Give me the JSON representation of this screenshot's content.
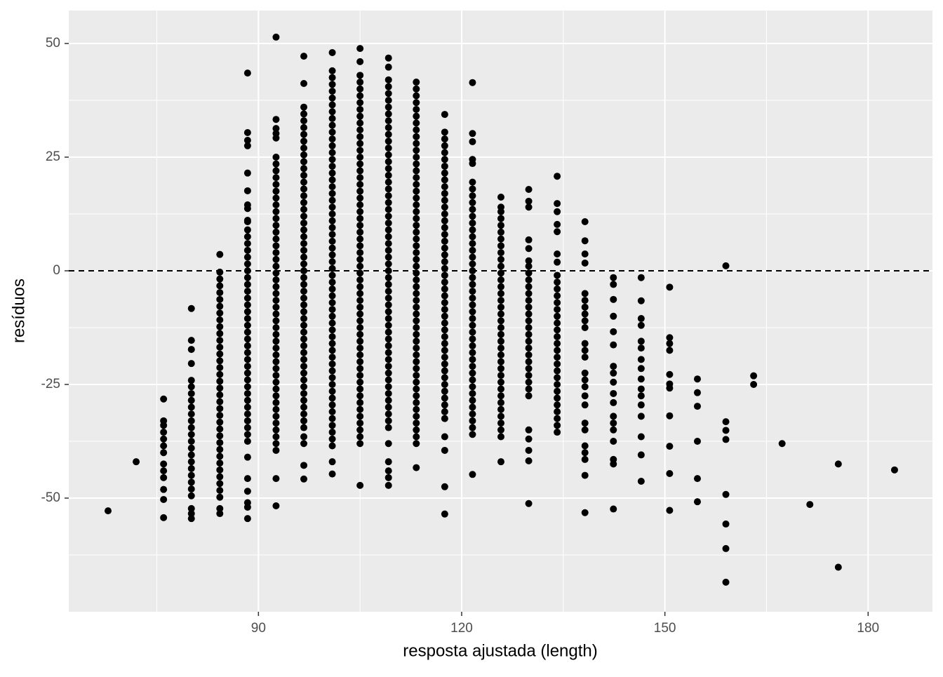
{
  "chart_data": {
    "type": "scatter",
    "x_label": "resposta ajustada (length)",
    "y_label": "resíduos",
    "xlim": [
      62.0,
      189.5
    ],
    "ylim": [
      -75.0,
      57.25
    ],
    "xticks": [
      90,
      120,
      150,
      180
    ],
    "yticks": [
      -50,
      -25,
      0,
      25,
      50
    ],
    "x_minor_grid": [
      75,
      105,
      135,
      165
    ],
    "y_minor_grid": [
      -62.5,
      -37.5,
      -12.5,
      12.5,
      37.5
    ],
    "hline": 0,
    "color": "#000000",
    "groups": [
      {
        "x": 67.8,
        "values": [
          -52.8
        ]
      },
      {
        "x": 71.95,
        "values": [
          -42.0
        ]
      },
      {
        "x": 76.0,
        "values": [
          -28.2,
          -33,
          -34,
          -35.5,
          -37,
          -38.5,
          -40,
          -42.5,
          -44,
          -45.5,
          -48.1,
          -50.3,
          -54.3
        ]
      },
      {
        "x": 80.1,
        "values": [
          -8.3,
          -15.3,
          -17.3,
          -20.4,
          -24.1,
          -25.5,
          -27,
          -28.5,
          -30,
          -31.5,
          -33,
          -34.5,
          -36,
          -37.5,
          -39,
          -40.5,
          -42,
          -43.5,
          -45,
          -46.5,
          -48,
          -49.5,
          -52.3,
          -53.4,
          -54.5
        ]
      },
      {
        "x": 84.3,
        "values": [
          3.6,
          -0.3,
          -1.8,
          -3.3,
          -4.8,
          -6.3,
          -7.8,
          -9.3,
          -10.8,
          -12.3,
          -13.8,
          -15.3,
          -16.8,
          -18.3,
          -19.8,
          -21.3,
          -22.8,
          -24.3,
          -25.8,
          -27.3,
          -28.8,
          -30.3,
          -31.8,
          -33.3,
          -34.8,
          -36.3,
          -37.8,
          -39.3,
          -40.8,
          -42.3,
          -43.8,
          -45.3,
          -46.8,
          -48.3,
          -49.8,
          -52.3,
          -53.4
        ]
      },
      {
        "x": 88.4,
        "values": [
          43.5,
          30.4,
          28.7,
          27.5,
          21.5,
          17.6,
          14.5,
          13.7,
          11.1,
          10.8,
          9,
          7.5,
          6,
          4.5,
          3,
          1.5,
          0,
          -1.5,
          -3,
          -4.5,
          -6,
          -7.5,
          -9,
          -10.5,
          -12,
          -13.5,
          -15,
          -16.5,
          -18,
          -19.5,
          -21,
          -22.5,
          -24,
          -25.5,
          -27,
          -28.5,
          -30,
          -31.5,
          -33,
          -34.5,
          -36,
          -37.5,
          -41,
          -45.7,
          -48.5,
          -51,
          -52,
          -54.5
        ]
      },
      {
        "x": 92.6,
        "values": [
          51.4,
          33.3,
          31.3,
          30.2,
          29.2,
          25,
          23.5,
          22,
          20.5,
          19,
          17.5,
          16,
          14.5,
          13,
          11.5,
          10,
          8.5,
          7,
          5.5,
          4,
          2.5,
          1,
          -0.5,
          -2,
          -3.5,
          -5,
          -6.5,
          -8,
          -9.5,
          -11,
          -12.5,
          -14,
          -15.5,
          -17,
          -18.5,
          -20,
          -21.5,
          -23,
          -24.5,
          -26,
          -27.5,
          -29,
          -30.5,
          -32,
          -33.5,
          -35,
          -36.5,
          -38,
          -39.5,
          -45.7,
          -51.7
        ]
      },
      {
        "x": 96.7,
        "values": [
          47.2,
          41.2,
          36,
          34.5,
          33,
          31.5,
          30,
          28.5,
          27,
          25.5,
          24,
          22.5,
          21,
          19.5,
          18,
          16.5,
          15,
          13.5,
          12,
          10.5,
          9,
          7.5,
          6,
          4.5,
          3,
          1.5,
          0,
          -1.5,
          -3,
          -4.5,
          -6,
          -7.5,
          -9,
          -10.5,
          -12,
          -13.5,
          -15,
          -16.5,
          -18,
          -19.5,
          -21,
          -22.5,
          -24,
          -25.5,
          -27,
          -28.5,
          -30,
          -31.5,
          -33,
          -34.5,
          -36.5,
          -38,
          -42.8,
          -45.8
        ]
      },
      {
        "x": 100.9,
        "values": [
          48.0,
          44,
          42.5,
          41,
          39.5,
          38,
          36.5,
          35,
          33.5,
          32,
          30.5,
          29,
          27.5,
          26,
          24.5,
          23,
          21.5,
          20,
          18.5,
          17,
          15.5,
          14,
          12.5,
          11,
          9.5,
          8,
          6.5,
          5,
          3.5,
          2,
          0.5,
          -1,
          -2.5,
          -4,
          -5.5,
          -7,
          -8.5,
          -10,
          -11.5,
          -13,
          -14.5,
          -16,
          -17.5,
          -19,
          -20.5,
          -22,
          -23.5,
          -25,
          -26.5,
          -28,
          -29.5,
          -31,
          -32.5,
          -34,
          -35.5,
          -37,
          -38.5,
          -42,
          -44.7
        ]
      },
      {
        "x": 105.0,
        "values": [
          48.9,
          46,
          43,
          41.5,
          40,
          38.5,
          37,
          35.5,
          34,
          32.5,
          31,
          29.5,
          28,
          26.5,
          25,
          23.5,
          22,
          20.5,
          19,
          17.5,
          16,
          14.5,
          13,
          11.5,
          10,
          8.5,
          7,
          5.5,
          4,
          2.5,
          1,
          -0.5,
          -2,
          -3.5,
          -5,
          -6.5,
          -8,
          -9.5,
          -11,
          -12.5,
          -14,
          -15.5,
          -17,
          -18.5,
          -20,
          -21.5,
          -23,
          -24.5,
          -26,
          -27.5,
          -29,
          -30.5,
          -32,
          -33.5,
          -35,
          -36.5,
          -38,
          -47.2
        ]
      },
      {
        "x": 109.2,
        "values": [
          46.8,
          44.8,
          42,
          40.5,
          39,
          37.5,
          36,
          34.5,
          33,
          31.5,
          30,
          28.5,
          27,
          25.5,
          24,
          22.5,
          21,
          19.5,
          18,
          16.5,
          15,
          13.5,
          12,
          10.5,
          9,
          7.5,
          6,
          4.5,
          3,
          1.5,
          0,
          -1.5,
          -3,
          -4.5,
          -6,
          -7.5,
          -9,
          -10.5,
          -12,
          -13.5,
          -15,
          -16.5,
          -18,
          -19.5,
          -21,
          -22.5,
          -24,
          -25.5,
          -27,
          -28.5,
          -30,
          -31.5,
          -33,
          -34.5,
          -38,
          -42,
          -44,
          -45.5,
          -47.2
        ]
      },
      {
        "x": 113.3,
        "values": [
          41.5,
          40,
          38.5,
          37,
          35.5,
          34,
          32.5,
          31,
          29.5,
          28,
          26.5,
          25,
          23.5,
          22,
          20.5,
          19,
          17.5,
          16,
          14.5,
          13,
          11.5,
          10,
          8.5,
          7,
          5.5,
          4,
          2.5,
          1,
          -0.5,
          -2,
          -3.5,
          -5,
          -6.5,
          -8,
          -9.5,
          -11,
          -12.5,
          -14,
          -15.5,
          -17,
          -18.5,
          -20,
          -21.5,
          -23,
          -24.5,
          -26,
          -27.5,
          -29,
          -30.5,
          -32,
          -33.5,
          -35,
          -36.5,
          -38,
          -43.3
        ]
      },
      {
        "x": 117.5,
        "values": [
          34.4,
          30.5,
          29,
          27.5,
          26,
          24.5,
          23,
          21.5,
          20,
          18.5,
          17,
          15.5,
          14,
          12.5,
          11,
          9.5,
          8,
          6.5,
          5,
          3.5,
          2,
          0.5,
          -1,
          -2.5,
          -4,
          -5.5,
          -7,
          -8.5,
          -10,
          -11.5,
          -13,
          -14.5,
          -16,
          -17.5,
          -19,
          -20.5,
          -22,
          -23.5,
          -25,
          -26.5,
          -28,
          -29.5,
          -31,
          -32.5,
          -36.5,
          -39.5,
          -47.5,
          -53.5
        ]
      },
      {
        "x": 121.6,
        "values": [
          41.4,
          30.2,
          28.4,
          24.5,
          23.6,
          19.5,
          18,
          16.5,
          15,
          13.5,
          12,
          10.5,
          9,
          7.5,
          6,
          4.5,
          3,
          1.5,
          0,
          -1.5,
          -3,
          -4.5,
          -6,
          -7.5,
          -9,
          -10.5,
          -12,
          -13.5,
          -15,
          -16.5,
          -18,
          -19.5,
          -21,
          -22.5,
          -24,
          -25.5,
          -27,
          -28.5,
          -30,
          -31.5,
          -33,
          -34.5,
          -36,
          -44.8
        ]
      },
      {
        "x": 125.8,
        "values": [
          16.2,
          14,
          13,
          11.5,
          10,
          8.5,
          7,
          5.5,
          4,
          2.5,
          1,
          -0.5,
          -2,
          -3.5,
          -5,
          -6.5,
          -8,
          -9.5,
          -11,
          -12.5,
          -14,
          -15.5,
          -17,
          -18.5,
          -20,
          -21.5,
          -23,
          -24.5,
          -26,
          -27.5,
          -29,
          -30.5,
          -32,
          -33.5,
          -35,
          -36.5,
          -42
        ]
      },
      {
        "x": 129.9,
        "values": [
          17.9,
          15.3,
          14,
          6.8,
          4.9,
          2.2,
          1,
          -0.5,
          -2,
          -3.5,
          -5,
          -6.5,
          -8,
          -9.5,
          -11,
          -12.5,
          -14,
          -15.5,
          -17,
          -18.5,
          -20,
          -21.5,
          -23,
          -24.5,
          -26,
          -27.5,
          -35,
          -37,
          -39.5,
          -41.8,
          -51.2
        ]
      },
      {
        "x": 134.1,
        "values": [
          20.8,
          14.8,
          13,
          10.2,
          8.6,
          3.7,
          1.9,
          -1,
          -2.5,
          -4,
          -5.5,
          -7,
          -8.5,
          -10,
          -11.5,
          -13,
          -14.5,
          -16,
          -17.5,
          -19,
          -20.5,
          -22,
          -23.5,
          -25,
          -26.5,
          -28,
          -29.5,
          -31,
          -32.5,
          -34,
          -35.5
        ]
      },
      {
        "x": 138.2,
        "values": [
          10.8,
          6.6,
          3.7,
          1.7,
          -5,
          -6.5,
          -8,
          -9.5,
          -11,
          -12.5,
          -16,
          -17.5,
          -19,
          -22.5,
          -24,
          -25.5,
          -27.5,
          -29.5,
          -33.5,
          -35,
          -38.5,
          -40,
          -41.5,
          -45,
          -53.2
        ]
      },
      {
        "x": 142.4,
        "values": [
          -1.5,
          -3,
          -6.3,
          -10,
          -13.4,
          -16.3,
          -21,
          -22.5,
          -24.5,
          -27,
          -29,
          -32,
          -33.5,
          -35,
          -37.5,
          -41.5,
          -42.5,
          -52.4
        ]
      },
      {
        "x": 146.5,
        "values": [
          -1.5,
          -6.6,
          -10.5,
          -12,
          -15.5,
          -17,
          -19.5,
          -21.5,
          -23.8,
          -26,
          -27.5,
          -29.5,
          -32,
          -36.5,
          -40.5,
          -46.3
        ]
      },
      {
        "x": 150.7,
        "values": [
          -3.6,
          -14.7,
          -16,
          -17.5,
          -22.8,
          -24.9,
          -25.8,
          -31.9,
          -38.6,
          -44.6,
          -52.7
        ]
      },
      {
        "x": 154.8,
        "values": [
          -23.8,
          -26.8,
          -29.8,
          -37.5,
          -45.7,
          -50.8
        ]
      },
      {
        "x": 159.0,
        "values": [
          1.1,
          -33.2,
          -35.1,
          -37.1,
          -49.2,
          -55.7,
          -61.1,
          -68.5
        ]
      },
      {
        "x": 163.1,
        "values": [
          -23.1,
          -25
        ]
      },
      {
        "x": 167.3,
        "values": [
          -38
        ]
      },
      {
        "x": 171.4,
        "values": [
          -51.4
        ]
      },
      {
        "x": 175.6,
        "values": [
          -42.5,
          -65.2
        ]
      },
      {
        "x": 183.9,
        "values": [
          -43.8
        ]
      }
    ]
  }
}
